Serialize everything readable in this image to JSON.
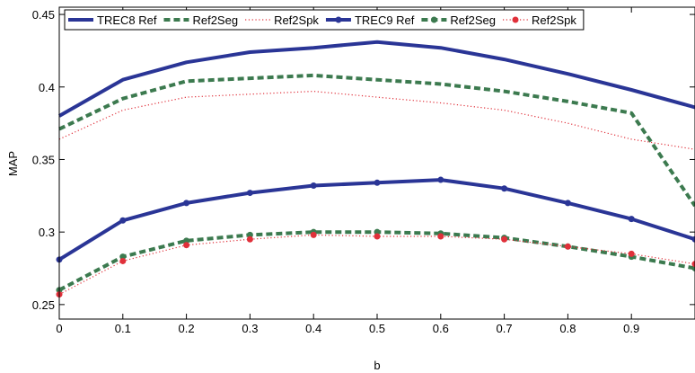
{
  "chart_data": {
    "type": "line",
    "title": "",
    "xlabel": "b",
    "ylabel": "MAP",
    "xlim": [
      0,
      1
    ],
    "ylim": [
      0.24,
      0.455
    ],
    "x": [
      0,
      0.1,
      0.2,
      0.3,
      0.4,
      0.5,
      0.6,
      0.7,
      0.8,
      0.9,
      1.0
    ],
    "x_ticks": [
      "0",
      "0.1",
      "0.2",
      "0.3",
      "0.4",
      "0.5",
      "0.6",
      "0.7",
      "0.8",
      "0.9"
    ],
    "y_ticks": [
      "0.25",
      "0.3",
      "0.35",
      "0.4",
      "0.45"
    ],
    "grid": false,
    "legend_position": "top",
    "series": [
      {
        "name": "TREC8 Ref",
        "color": "#2a3596",
        "style": "solid",
        "marker": "none",
        "values": [
          0.38,
          0.405,
          0.417,
          0.424,
          0.427,
          0.431,
          0.427,
          0.419,
          0.409,
          0.398,
          0.386
        ]
      },
      {
        "name": "Ref2Seg",
        "color": "#3c7a4f",
        "style": "dashed",
        "marker": "none",
        "values": [
          0.371,
          0.392,
          0.404,
          0.406,
          0.408,
          0.405,
          0.402,
          0.397,
          0.39,
          0.382,
          0.318
        ]
      },
      {
        "name": "Ref2Spk",
        "color": "#e0303a",
        "style": "dotted",
        "marker": "none",
        "values": [
          0.364,
          0.384,
          0.393,
          0.395,
          0.397,
          0.393,
          0.389,
          0.384,
          0.375,
          0.364,
          0.357
        ]
      },
      {
        "name": "TREC9 Ref",
        "color": "#2a3596",
        "style": "solid",
        "marker": "dot",
        "values": [
          0.281,
          0.308,
          0.32,
          0.327,
          0.332,
          0.334,
          0.336,
          0.33,
          0.32,
          0.309,
          0.295
        ]
      },
      {
        "name": "Ref2Seg",
        "color": "#3c7a4f",
        "style": "dashed",
        "marker": "dot",
        "values": [
          0.26,
          0.283,
          0.294,
          0.298,
          0.3,
          0.3,
          0.299,
          0.296,
          0.29,
          0.283,
          0.275
        ]
      },
      {
        "name": "Ref2Spk",
        "color": "#e0303a",
        "style": "dotted",
        "marker": "dot",
        "values": [
          0.257,
          0.28,
          0.291,
          0.295,
          0.298,
          0.297,
          0.297,
          0.295,
          0.29,
          0.285,
          0.278
        ]
      }
    ]
  }
}
